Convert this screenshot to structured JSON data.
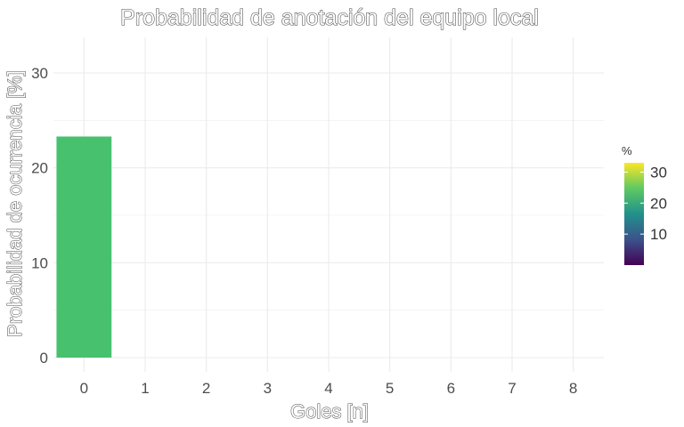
{
  "chart_data": {
    "type": "bar",
    "title": "Probabilidad de anotación del equipo local",
    "xlabel": "Goles [n]",
    "ylabel": "Probabilidad de ocurrencia [%]",
    "categories": [
      0,
      1,
      2,
      3,
      4,
      5,
      6,
      7,
      8
    ],
    "values": [
      23.3,
      0,
      0,
      0,
      0,
      0,
      0,
      0,
      0
    ],
    "ylim": [
      0,
      33
    ],
    "yticks": [
      0,
      10,
      20,
      30
    ],
    "bar_color": "#47c16e",
    "grid": true,
    "legend": {
      "title": "%",
      "position": "right",
      "type": "colorbar",
      "palette": "viridis",
      "colors": [
        "#440154",
        "#3b528b",
        "#21918c",
        "#5ec962",
        "#fde725"
      ],
      "range": [
        0,
        33
      ],
      "ticks": [
        10,
        20,
        30
      ]
    }
  }
}
